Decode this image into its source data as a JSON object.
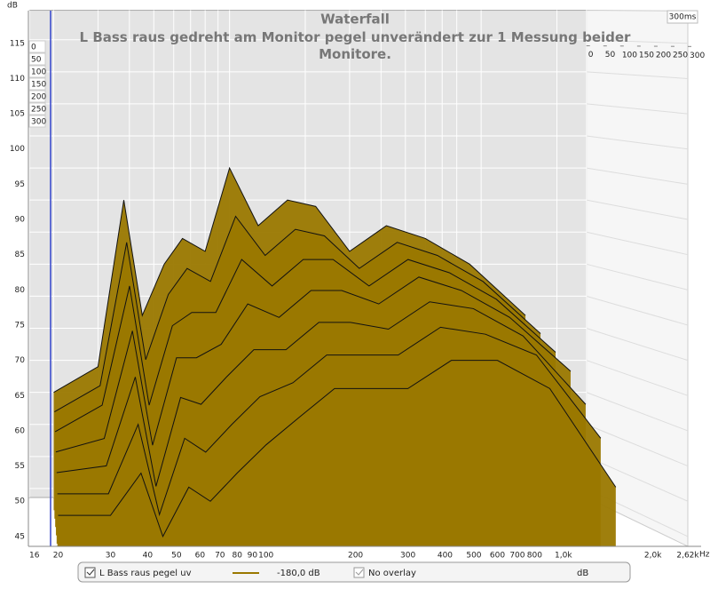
{
  "chart_data": {
    "type": "waterfall",
    "title": "Waterfall",
    "subtitle": "L Bass raus gedreht am Monitor pegel unverändert zur 1 Messung beider Monitore.",
    "y_label": "dB",
    "x_unit": "Hz",
    "log_x": true,
    "grid": true,
    "color": "#9a7800",
    "xlim": [
      16,
      2620
    ],
    "xticks": [
      16,
      20,
      30,
      40,
      50,
      60,
      70,
      80,
      90,
      100,
      200,
      300,
      400,
      500,
      600,
      700,
      800,
      {
        "value": 1000,
        "label": "1,0k"
      },
      {
        "value": 2000,
        "label": "2,0k"
      },
      {
        "value": 2620,
        "label": "2,62k"
      }
    ],
    "ylim": [
      43.6,
      119.6
    ],
    "yticks": [
      45,
      50,
      55,
      60,
      65,
      70,
      75,
      80,
      85,
      90,
      95,
      100,
      105,
      110,
      115
    ],
    "zlim": [
      0,
      300
    ],
    "zticks": [
      0,
      50,
      100,
      150,
      200,
      250,
      300
    ],
    "z_range_label": "300ms",
    "x": [
      20,
      30,
      38,
      45,
      55,
      65,
      80,
      100,
      130,
      170,
      220,
      300,
      420,
      600,
      900,
      1500
    ],
    "slices": [
      {
        "time": 0,
        "values": [
          60,
          64,
          90,
          72,
          80,
          84,
          82,
          95,
          86,
          90,
          89,
          82,
          86,
          84,
          80,
          72
        ]
      },
      {
        "time": 50,
        "values": [
          58,
          62,
          84,
          66,
          76,
          80,
          78,
          88,
          82,
          86,
          85,
          80,
          84,
          82,
          78,
          70
        ]
      },
      {
        "time": 100,
        "values": [
          56,
          60,
          78,
          60,
          72,
          74,
          74,
          82,
          78,
          82,
          82,
          78,
          82,
          80,
          76,
          68
        ]
      },
      {
        "time": 150,
        "values": [
          54,
          56,
          72,
          55,
          68,
          68,
          70,
          76,
          74,
          78,
          78,
          76,
          80,
          78,
          74,
          66
        ]
      },
      {
        "time": 200,
        "values": [
          52,
          53,
          66,
          50,
          63,
          62,
          66,
          70,
          70,
          74,
          74,
          73,
          77,
          76,
          72,
          62
        ]
      },
      {
        "time": 250,
        "values": [
          50,
          50,
          60,
          47,
          58,
          56,
          60,
          64,
          66,
          70,
          70,
          70,
          74,
          73,
          70,
          58
        ]
      },
      {
        "time": 300,
        "values": [
          48,
          48,
          54,
          45,
          52,
          50,
          54,
          58,
          62,
          66,
          66,
          66,
          70,
          70,
          66,
          52
        ]
      }
    ],
    "legend": {
      "name": "L Bass raus pegel uv",
      "level": "-180,0 dB",
      "overlay": "No overlay",
      "unit": "dB"
    }
  }
}
